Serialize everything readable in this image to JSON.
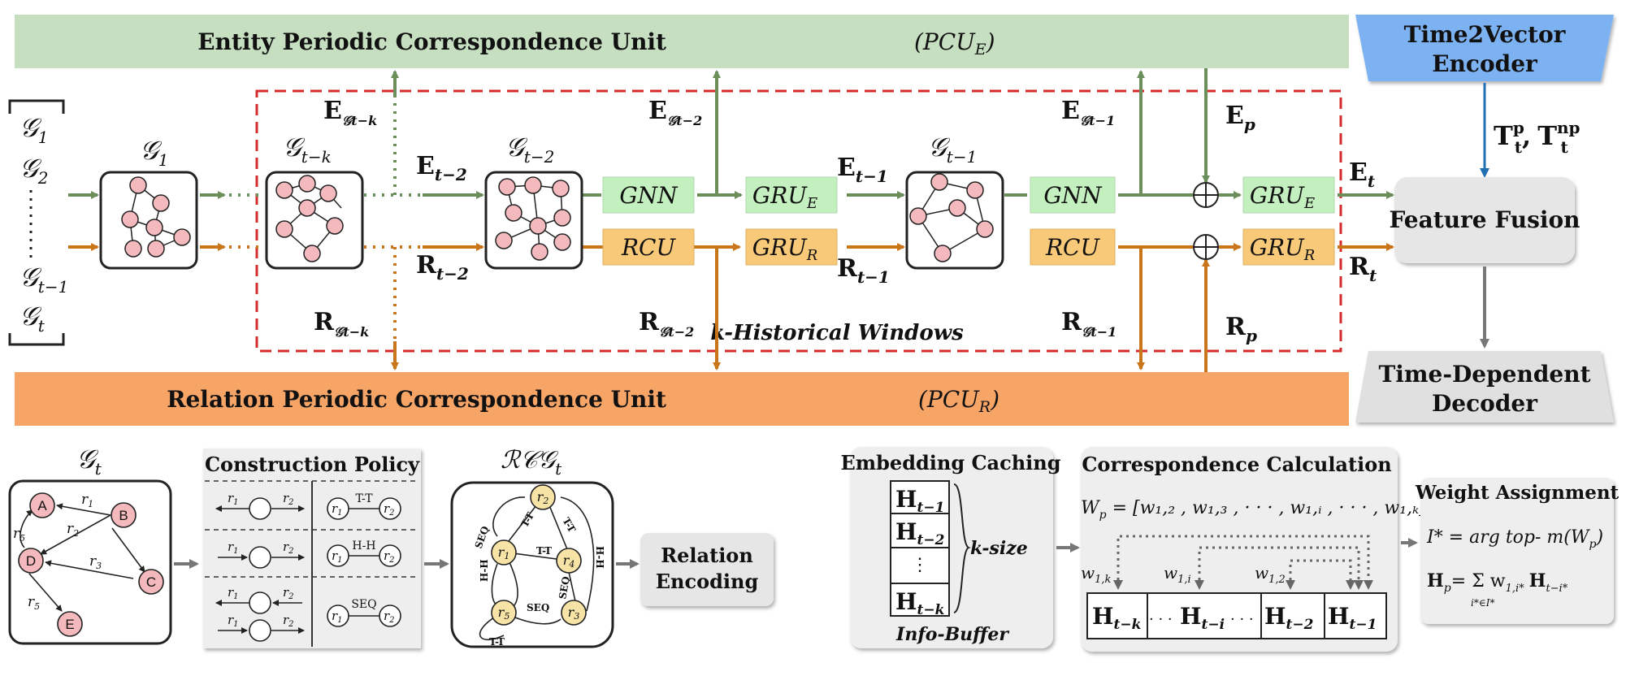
{
  "top_bar": {
    "label": "Entity Periodic Correspondence Unit",
    "math_label": "(PCU",
    "math_sub": "E",
    "math_close": ")"
  },
  "bottom_bar": {
    "label": "Relation Periodic Correspondence Unit",
    "math_label": "(PCU",
    "math_sub": "R",
    "math_close": ")"
  },
  "t2v": {
    "line1": "Time2Vector",
    "line2": "Encoder"
  },
  "t2v_out": {
    "t1": "T",
    "t1_sup": "p",
    "t1_sub": "t",
    "sep": ",",
    "t2": "T",
    "t2_sup": "np",
    "t2_sub": "t"
  },
  "feature_fusion": "Feature Fusion",
  "decoder": {
    "line1": "Time-Dependent",
    "line2": "Decoder"
  },
  "input_list": {
    "g1": "𝒢",
    "g1_sub": "1",
    "g2": "𝒢",
    "g2_sub": "2",
    "dots": "⋮",
    "gt1": "𝒢",
    "gt1_sub": "t−1",
    "gt": "𝒢",
    "gt_sub": "t"
  },
  "graphs": {
    "g1": {
      "base": "𝒢",
      "sub": "1"
    },
    "gtk": {
      "base": "𝒢",
      "sub": "t−k"
    },
    "gt2": {
      "base": "𝒢",
      "sub": "t−2"
    },
    "gt1": {
      "base": "𝒢",
      "sub": "t−1"
    }
  },
  "modules": {
    "gnn1": "GNN",
    "rcu1": "RCU",
    "gru_e1": "GRU",
    "gru_e1_sub": "E",
    "gru_r1": "GRU",
    "gru_r1_sub": "R",
    "gnn2": "GNN",
    "rcu2": "RCU",
    "gru_e2": "GRU",
    "gru_e2_sub": "E",
    "gru_r2": "GRU",
    "gru_r2_sub": "R"
  },
  "flow_labels": {
    "e_gtk": "E",
    "e_gtk_sub": "𝒢t−k",
    "e_t2": "E",
    "e_t2_sub": "t−2",
    "e_gt2": "E",
    "e_gt2_sub": "𝒢t−2",
    "e_t1": "E",
    "e_t1_sub": "t−1",
    "e_gt1": "E",
    "e_gt1_sub": "𝒢t−1",
    "e_p": "E",
    "e_p_sub": "p",
    "e_t": "E",
    "e_t_sub": "t",
    "r_gtk": "R",
    "r_gtk_sub": "𝒢t−k",
    "r_t2": "R",
    "r_t2_sub": "t−2",
    "r_gt2": "R",
    "r_gt2_sub": "𝒢t−2",
    "r_t1": "R",
    "r_t1_sub": "t−1",
    "r_gt1": "R",
    "r_gt1_sub": "𝒢t−1",
    "r_p": "R",
    "r_p_sub": "p",
    "r_t": "R",
    "r_t_sub": "t"
  },
  "window_label": "k-Historical Windows",
  "plus": "⊕",
  "bottom_graph": {
    "title": "𝒢",
    "title_sub": "t",
    "nodes": {
      "a": "A",
      "b": "B",
      "c": "C",
      "d": "D",
      "e": "E"
    },
    "edges": {
      "r1": "r",
      "r1_sub": "1",
      "r2": "r",
      "r2_sub": "2",
      "r3": "r",
      "r3_sub": "3",
      "r5a": "r",
      "r5a_sub": "5",
      "r5b": "r",
      "r5b_sub": "5"
    }
  },
  "construction_policy": {
    "title": "Construction Policy",
    "r1": "r",
    "r1_sub": "1",
    "r2": "r",
    "r2_sub": "2",
    "tt": "T-T",
    "hh": "H-H",
    "seq": "SEQ"
  },
  "rcg": {
    "title": "ℛ𝒞𝒢",
    "title_sub": "t",
    "nodes": {
      "r1": "r",
      "r1_sub": "1",
      "r2": "r",
      "r2_sub": "2",
      "r3": "r",
      "r3_sub": "3",
      "r4": "r",
      "r4_sub": "4",
      "r5": "r",
      "r5_sub": "5"
    },
    "edges": {
      "tt1": "T-T",
      "tt2": "T-T",
      "tt3": "T-T",
      "tt4": "T-T",
      "hh1": "H-H",
      "hh2": "H-H",
      "seq1": "SEQ",
      "seq2": "SEQ",
      "seq3": "SEQ"
    }
  },
  "relation_encoding": {
    "line1": "Relation",
    "line2": "Encoding"
  },
  "embedding_caching": {
    "title": "Embedding Caching",
    "h1": "H",
    "h1_sub": "t−1",
    "h2": "H",
    "h2_sub": "t−2",
    "dots": "⋮",
    "hk": "H",
    "hk_sub": "t−k",
    "ksize": "k-size",
    "buffer": "Info-Buffer"
  },
  "correspondence": {
    "title": "Correspondence Calculation",
    "formula": "W",
    "formula_sub": "p",
    "formula_rest": " = [w₁,₂ , w₁,₃ , · · · , w₁,ᵢ , · · · , w₁,ₖ]",
    "w1k": "w",
    "w1k_sub": "1,k",
    "w1i": "w",
    "w1i_sub": "1,i",
    "w12": "w",
    "w12_sub": "1,2",
    "cells": {
      "c1": "H",
      "c1_sub": "t−k",
      "c2": "H",
      "c2_sub": "t−i",
      "c3": "H",
      "c3_sub": "t−2",
      "c4": "H",
      "c4_sub": "t−1",
      "dots": "· · ·"
    }
  },
  "weight_assignment": {
    "title": "Weight Assignment",
    "eq1": "I* = arg top- m(W",
    "eq1_sub": "p",
    "eq1_close": ")",
    "eq2_lhs": "H",
    "eq2_lhs_sub": "p",
    "eq2_rhs": "= Σ w",
    "eq2_w_sub": "1,i*",
    "eq2_h": "H",
    "eq2_h_sub": "t−i*",
    "eq2_under": "i*∈I*"
  },
  "colors": {
    "green_bar": "#c6dfc1",
    "orange_bar": "#f7a467",
    "green_arrow": "#6b8e5a",
    "orange_arrow": "#c9751a",
    "blue_box": "#7cb1f2",
    "blue_arrow": "#1f6fb2",
    "gray_box": "#e6e6e6",
    "gnn_green": "#c4f0c0",
    "rcu_orange": "#f8c978",
    "red_dash": "#d42b2b",
    "node_pink": "#f3b9bc",
    "node_yellow": "#f8e3a6",
    "red_text": "#d42b2b"
  }
}
